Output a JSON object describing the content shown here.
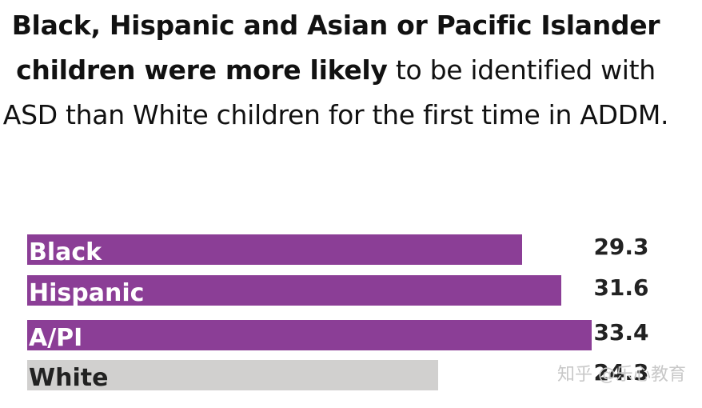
{
  "title": {
    "bold_part": "Black, Hispanic and Asian or Pacific Islander children were more likely",
    "normal_part": " to be identified with ASD than White children for the first time in ADDM."
  },
  "chart_data": {
    "type": "bar",
    "orientation": "horizontal",
    "categories": [
      "Black",
      "Hispanic",
      "A/PI",
      "White"
    ],
    "values": [
      29.3,
      31.6,
      33.4,
      24.3
    ],
    "value_labels": [
      "29.3",
      "31.6",
      "33.4",
      "24.3"
    ],
    "colors": [
      "#8b3e96",
      "#8b3e96",
      "#8b3e96",
      "#d1d0cf"
    ],
    "label_colors": [
      "#ffffff",
      "#ffffff",
      "#ffffff",
      "#222222"
    ],
    "xlim": [
      0,
      33.4
    ],
    "grid": false
  },
  "watermark": "知乎 @乐心教育"
}
